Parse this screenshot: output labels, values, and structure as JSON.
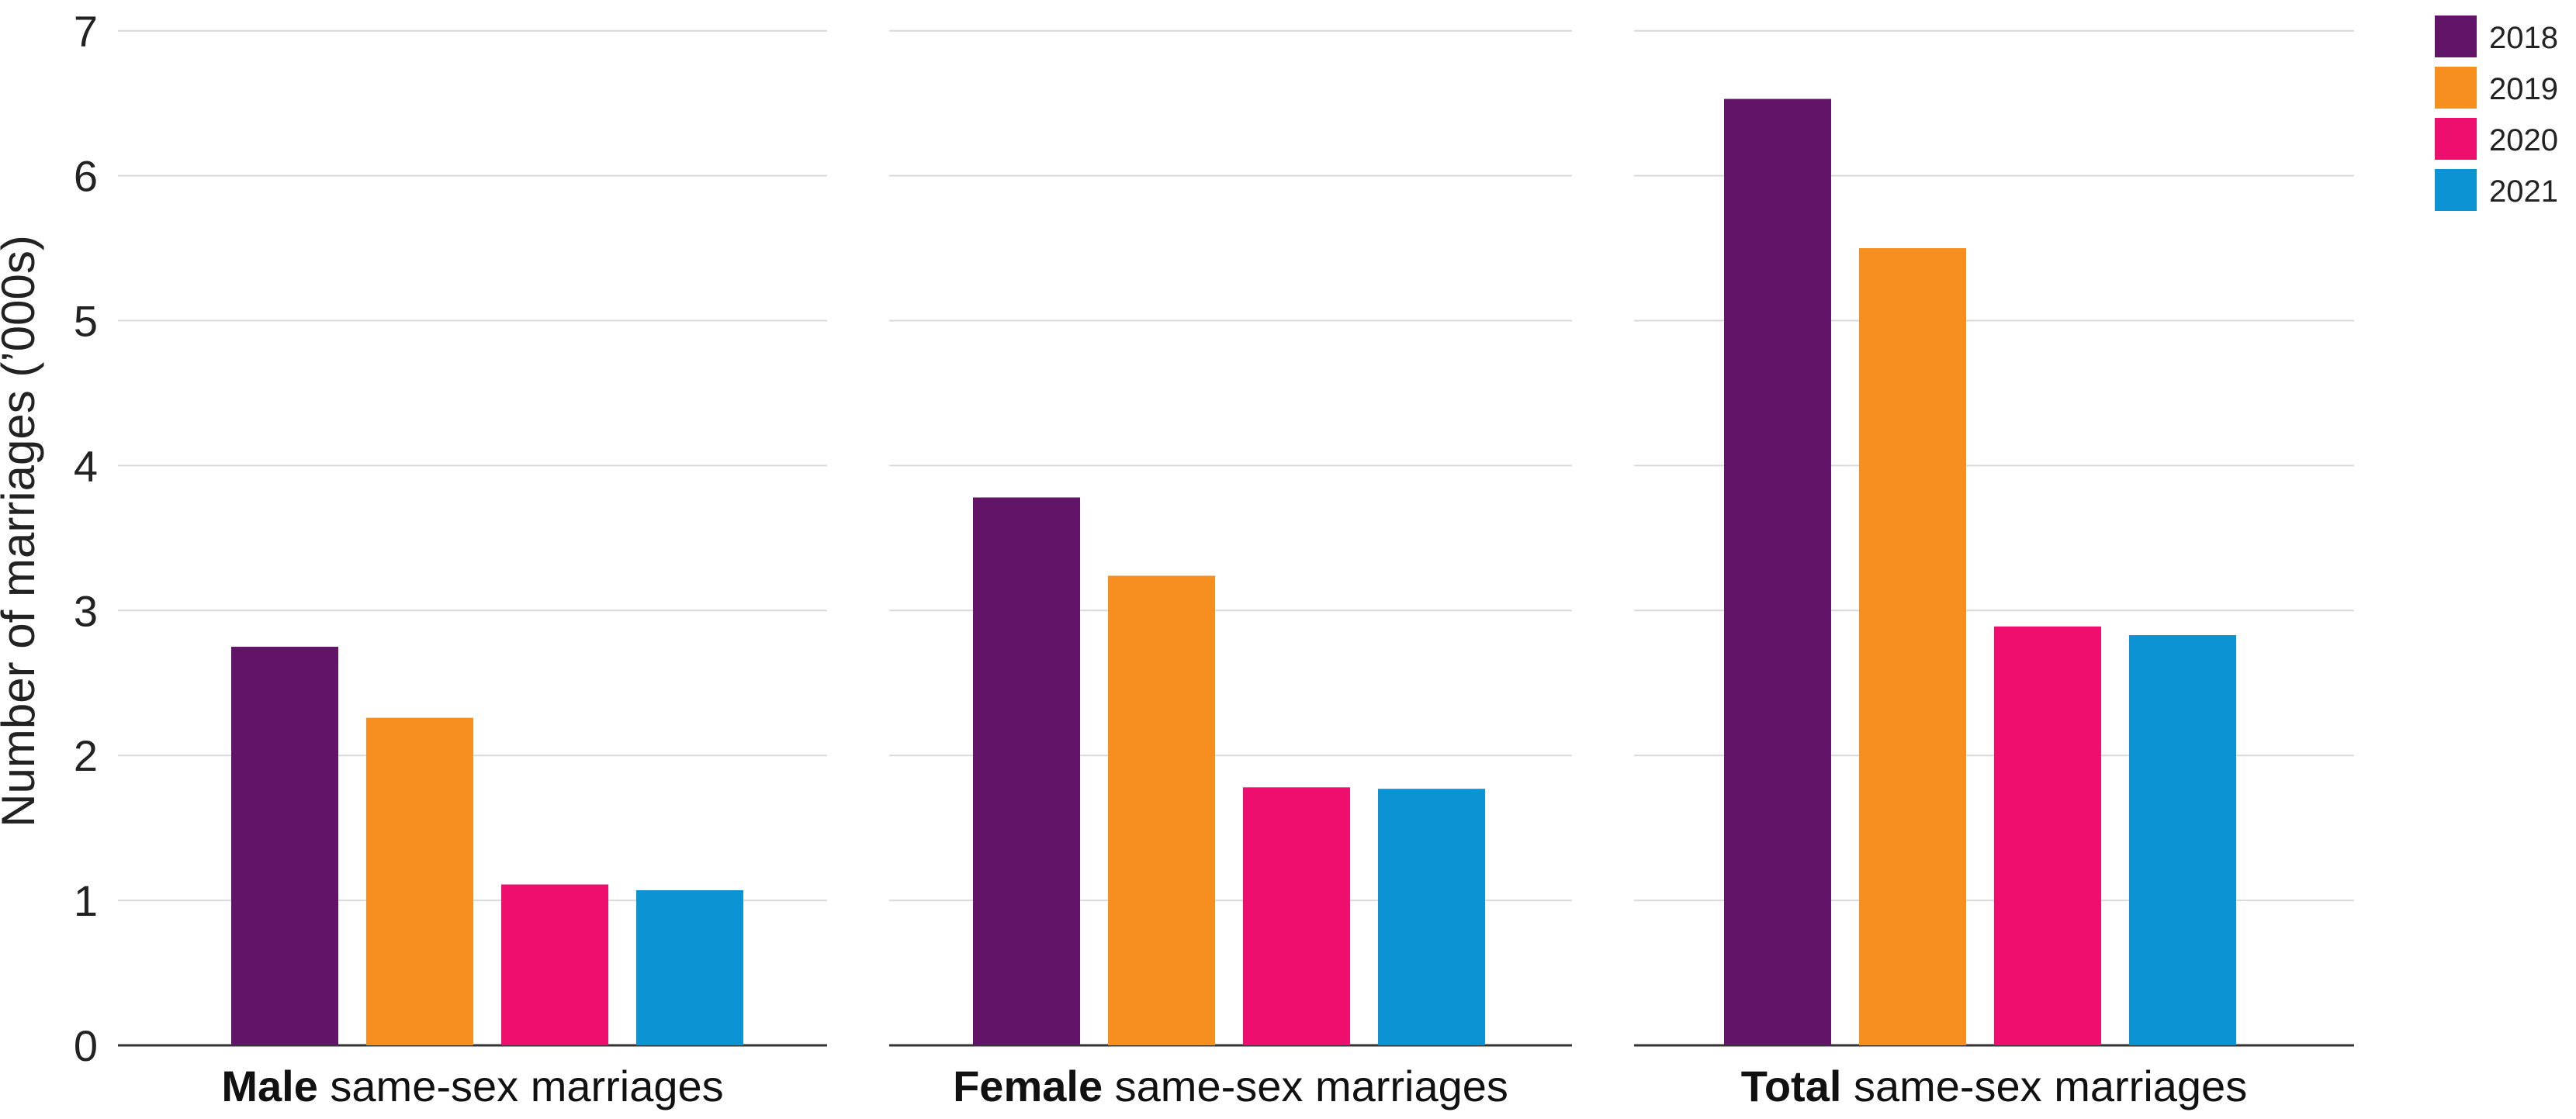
{
  "chart_data": {
    "type": "bar",
    "ylabel": "Number of marriages (’000s)",
    "ylim": [
      0,
      7
    ],
    "yticks": [
      "0",
      "1",
      "2",
      "3",
      "4",
      "5",
      "6",
      "7"
    ],
    "grid": true,
    "legend_position": "top-right",
    "series": [
      {
        "name": "2018",
        "color": "#621468"
      },
      {
        "name": "2019",
        "color": "#f78e20"
      },
      {
        "name": "2020",
        "color": "#ee0e6e"
      },
      {
        "name": "2021",
        "color": "#0b93d3"
      }
    ],
    "panels": [
      {
        "title_bold": "Male",
        "title_rest": " same-sex marriages",
        "values": [
          2.75,
          2.26,
          1.11,
          1.07
        ]
      },
      {
        "title_bold": "Female",
        "title_rest": " same-sex marriages",
        "values": [
          3.78,
          3.24,
          1.78,
          1.77
        ]
      },
      {
        "title_bold": "Total",
        "title_rest": " same-sex marriages",
        "values": [
          6.53,
          5.5,
          2.89,
          2.83
        ]
      }
    ]
  }
}
